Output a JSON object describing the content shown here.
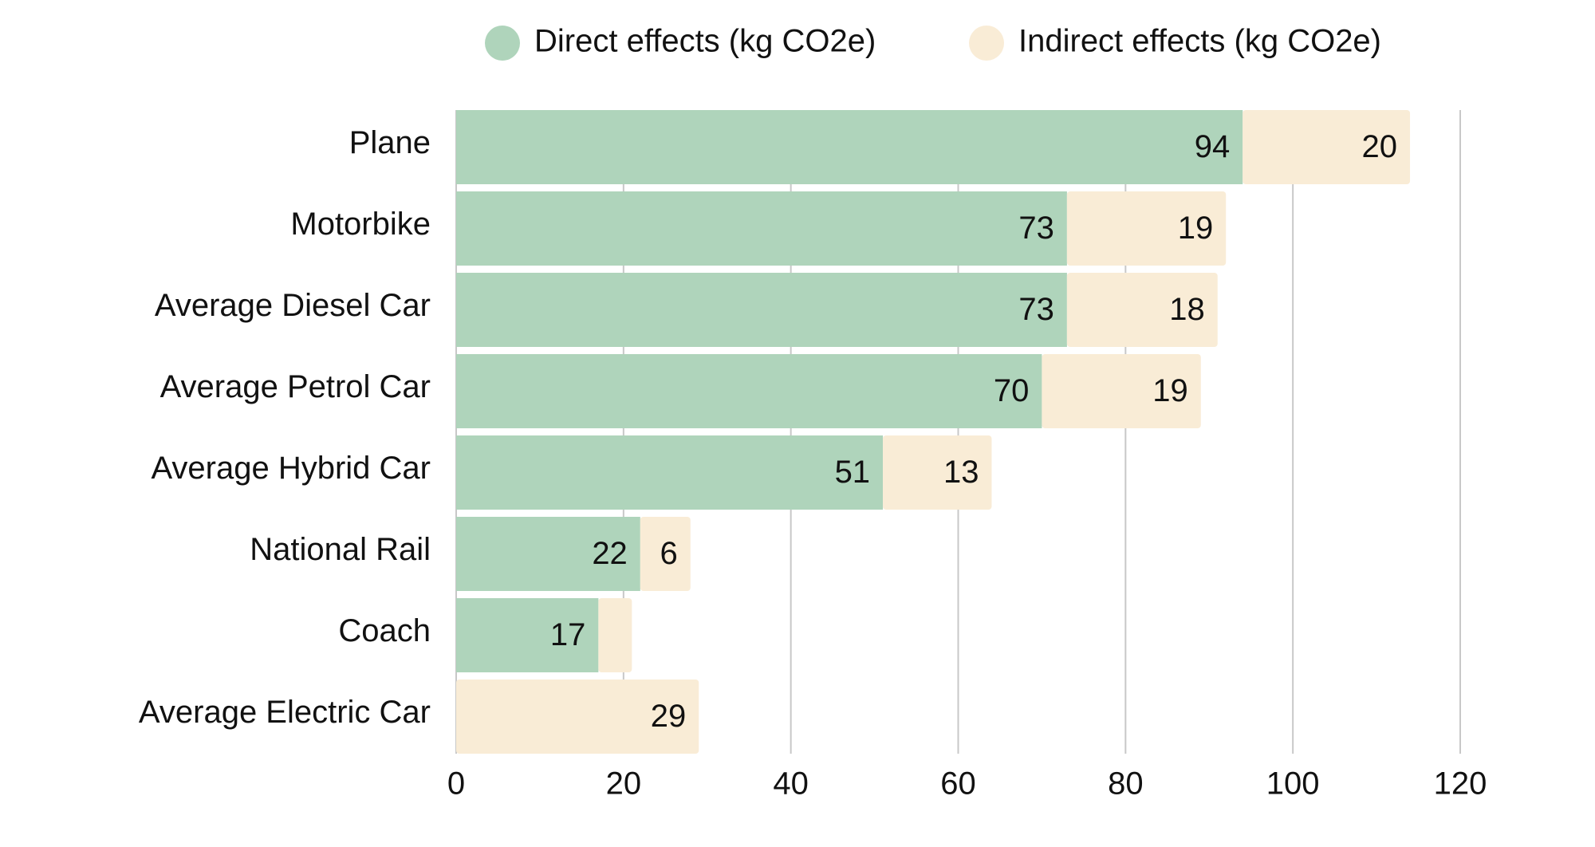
{
  "chart_data": {
    "type": "bar",
    "orientation": "horizontal",
    "stacked": true,
    "title": "",
    "xlabel": "",
    "ylabel": "",
    "categories": [
      "Plane",
      "Motorbike",
      "Average Diesel Car",
      "Average Petrol Car",
      "Average Hybrid Car",
      "National Rail",
      "Coach",
      "Average Electric Car"
    ],
    "series": [
      {
        "name": "Direct effects (kg CO2e)",
        "color": "#afd4bb",
        "values": [
          94,
          73,
          73,
          70,
          51,
          22,
          17,
          0
        ],
        "labels": [
          "94",
          "73",
          "73",
          "70",
          "51",
          "22",
          "17",
          ""
        ]
      },
      {
        "name": "Indirect effects (kg CO2e)",
        "color": "#f9ecd6",
        "values": [
          20,
          19,
          18,
          19,
          13,
          6,
          4,
          29
        ],
        "labels": [
          "20",
          "19",
          "18",
          "19",
          "13",
          "6",
          "",
          "29"
        ]
      }
    ],
    "xlim": [
      0,
      120
    ],
    "xticks": [
      "0",
      "20",
      "40",
      "60",
      "80",
      "100",
      "120"
    ],
    "xtick_values": [
      0,
      20,
      40,
      60,
      80,
      100,
      120
    ],
    "grid": true,
    "legend_position": "top-right"
  }
}
